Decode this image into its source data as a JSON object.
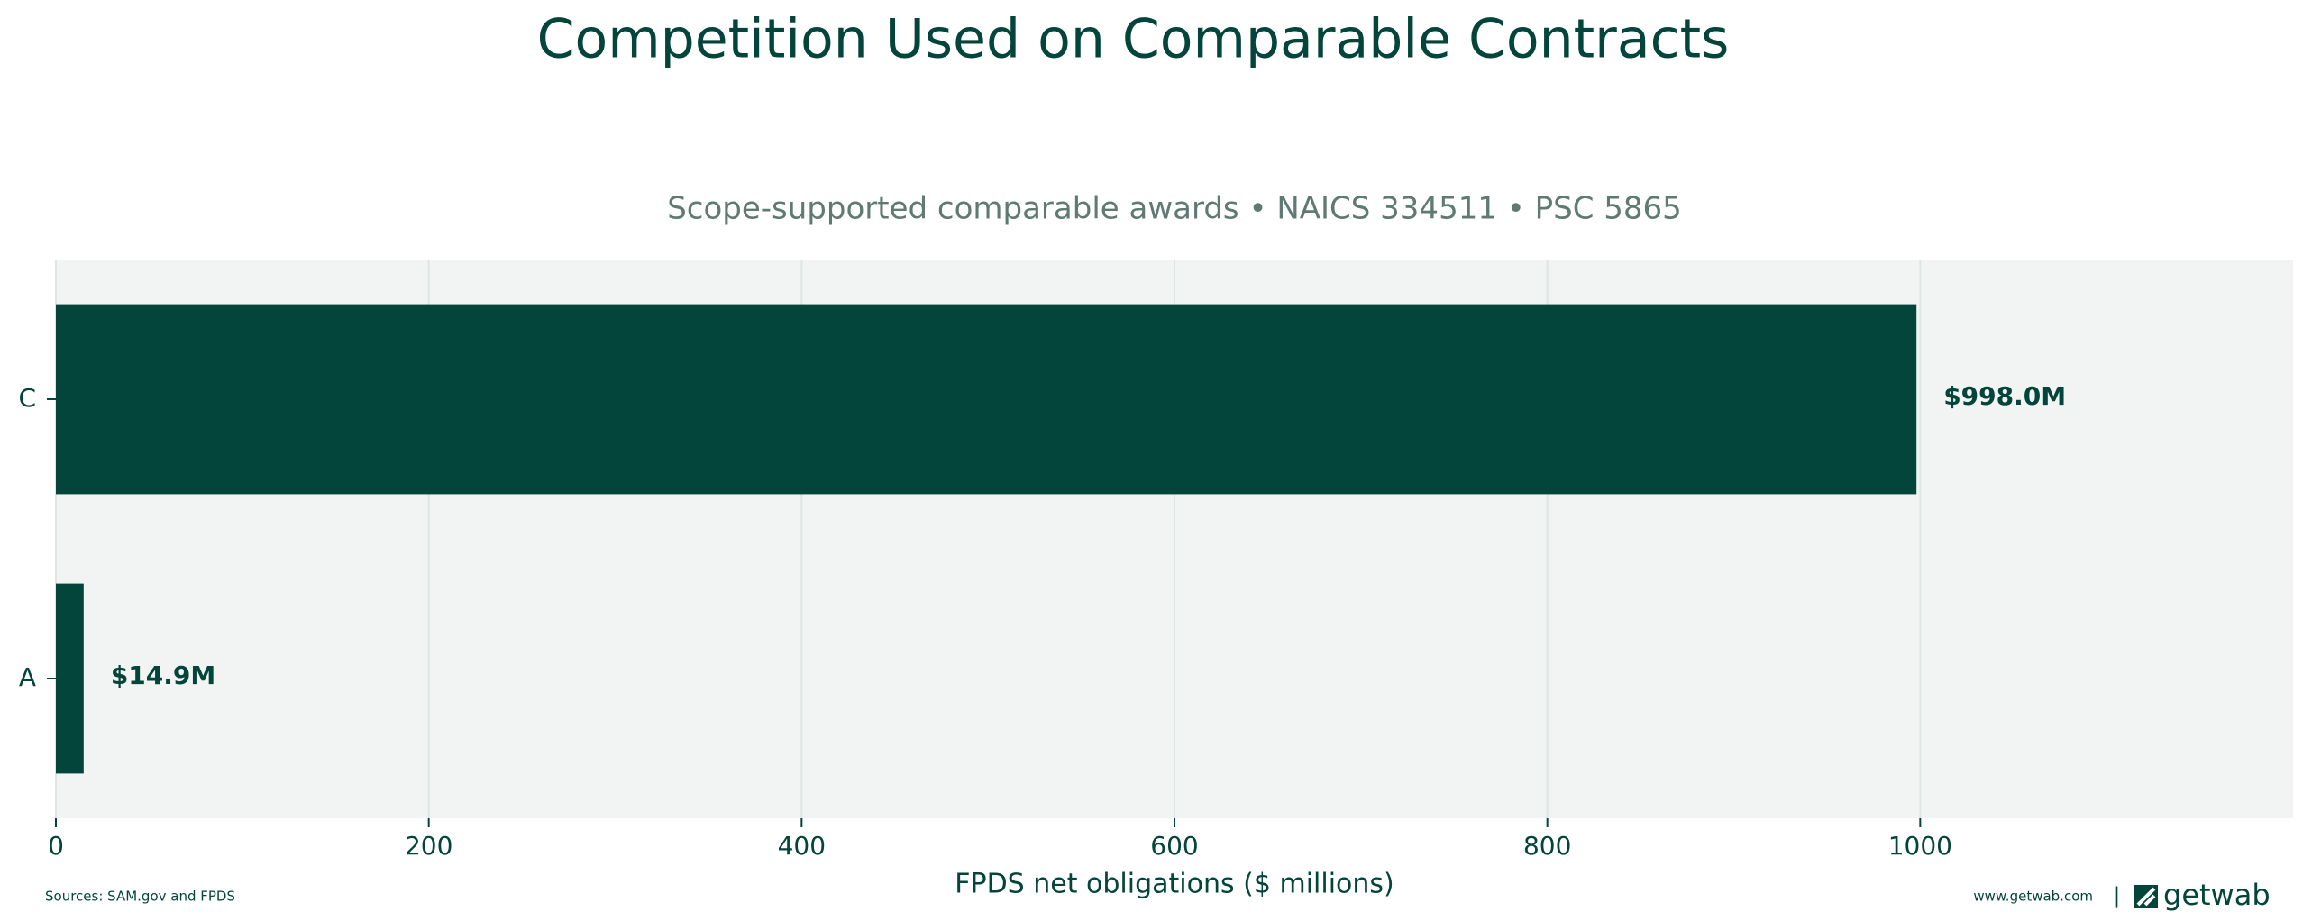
{
  "chart_data": {
    "type": "barh",
    "title": "Competition Used on Comparable Contracts",
    "subtitle": "Scope-supported comparable awards • NAICS 334511 • PSC 5865",
    "x_label": "FPDS net obligations ($ millions)",
    "categories": [
      "C",
      "A"
    ],
    "values": [
      998.0,
      14.9
    ],
    "value_labels": [
      "$998.0M",
      "$14.9M"
    ],
    "color": "#03453a",
    "xlim": [
      0,
      1200
    ],
    "xticks": [
      0,
      200,
      400,
      600,
      800,
      1000
    ],
    "grid": true
  },
  "footer": {
    "source": "Sources: SAM.gov and FPDS",
    "website": "www.getwab.com",
    "separator": "|",
    "logo": "getwab"
  }
}
